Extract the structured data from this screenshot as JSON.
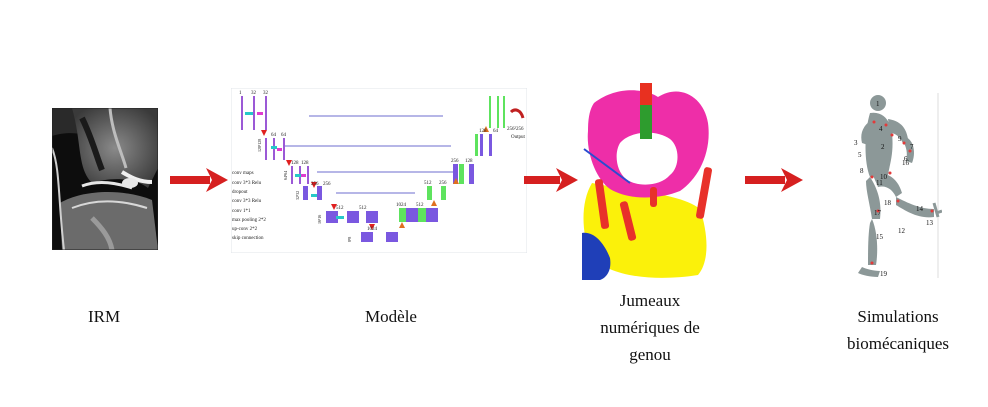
{
  "pipeline": {
    "steps": [
      {
        "id": "irm",
        "caption": "IRM"
      },
      {
        "id": "modele",
        "caption": "Modèle"
      },
      {
        "id": "jumeaux",
        "caption": "Jumeaux\nnumériques de\ngenou"
      },
      {
        "id": "simulations",
        "caption": "Simulations\nbiomécaniques"
      }
    ],
    "arrow_color": "#d62020"
  },
  "unet": {
    "stage_channels": [
      [
        "1",
        "32",
        "32"
      ],
      [
        "64",
        "64"
      ],
      [
        "128",
        "128"
      ],
      [
        "256",
        "256"
      ],
      [
        "512",
        "512"
      ],
      [
        "1024"
      ]
    ],
    "decoder_channels": [
      [
        "256",
        "128"
      ],
      [
        "128",
        "64"
      ],
      [
        "512",
        "256"
      ],
      [
        "1024",
        "512"
      ]
    ],
    "spatial_sizes": [
      "128²128",
      "64²64",
      "32²32",
      "16²16",
      "8²8"
    ],
    "output_label": "Output",
    "output_size": "256²256",
    "legend": [
      "conv maps",
      "conv 3*3 Relu",
      "dropout",
      "conv 3*3 Relu",
      "conv 1*1",
      "max pooling 2*2",
      "up-conv 2*2",
      "skip connection"
    ]
  },
  "runner": {
    "joint_numbers": [
      "1",
      "2",
      "3",
      "4",
      "5",
      "6",
      "7",
      "8",
      "9",
      "10",
      "11",
      "12",
      "13",
      "14",
      "15",
      "16",
      "17",
      "18",
      "19"
    ]
  }
}
